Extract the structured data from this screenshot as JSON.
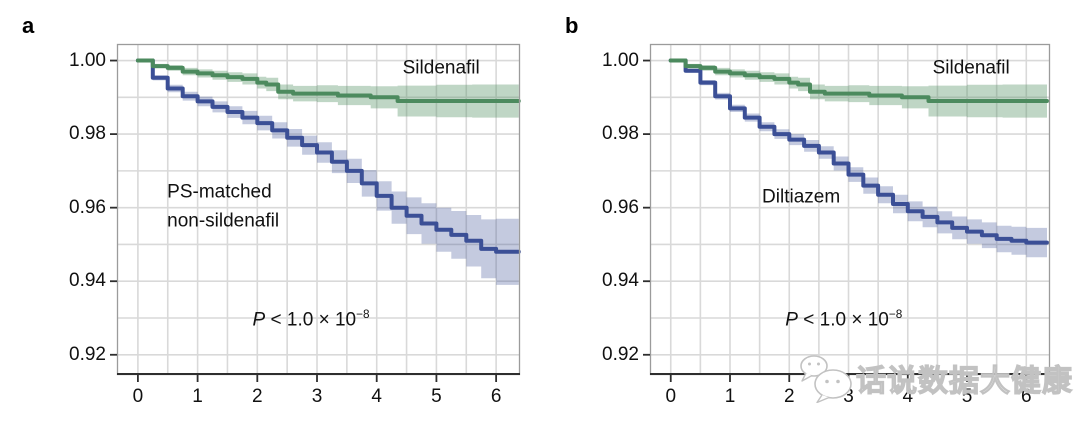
{
  "watermark": {
    "text": "话说数据大健康",
    "icon": "chat-bubbles-icon"
  },
  "colors": {
    "green_line": "#4c8a5e",
    "green_band": "rgba(78,142,94,0.36)",
    "blue_line": "#3b4f96",
    "blue_band": "rgba(59,79,150,0.30)",
    "grid": "#d9d9d9",
    "border": "#9b9b9b",
    "axis": "#2e2e2e",
    "text": "#111111"
  },
  "chart_data": [
    {
      "panel_label": "a",
      "type": "line",
      "subtype": "kaplan-meier-step",
      "title": "",
      "xlabel": "",
      "ylabel": "",
      "xlim": [
        -0.35,
        6.4
      ],
      "ylim": [
        0.9145,
        1.0045
      ],
      "xticks": [
        0,
        1,
        2,
        3,
        4,
        5,
        6
      ],
      "xtick_labels": [
        "0",
        "1",
        "2",
        "3",
        "4",
        "5",
        "6"
      ],
      "yticks": [
        1.0,
        0.98,
        0.96,
        0.94,
        0.92
      ],
      "ytick_labels": [
        "1.00",
        "0.98",
        "0.96",
        "0.94",
        "0.92"
      ],
      "grid": {
        "on": true,
        "x_step": 0.5,
        "x_range": [
          0,
          6
        ],
        "y_step": 0.01,
        "y_range": [
          0.92,
          1.0
        ]
      },
      "legend_position": "none",
      "series": [
        {
          "name": "Sildenafil",
          "color": "#4c8a5e",
          "band_color": "rgba(78,142,94,0.36)",
          "t": [
            0,
            0.25,
            0.5,
            0.75,
            1.0,
            1.25,
            1.5,
            1.75,
            2.0,
            2.15,
            2.35,
            2.6,
            3.0,
            3.35,
            3.9,
            4.35,
            5.0,
            5.6,
            6.0,
            6.38
          ],
          "v": [
            1.0,
            0.9985,
            0.998,
            0.997,
            0.9965,
            0.996,
            0.9955,
            0.995,
            0.994,
            0.9935,
            0.9915,
            0.991,
            0.991,
            0.9905,
            0.99,
            0.989,
            0.989,
            0.989,
            0.989,
            0.989
          ],
          "half": [
            0.0004,
            0.0006,
            0.0008,
            0.001,
            0.0011,
            0.0012,
            0.0013,
            0.0015,
            0.0016,
            0.0018,
            0.002,
            0.0021,
            0.0023,
            0.0026,
            0.003,
            0.0042,
            0.0044,
            0.0045,
            0.0045,
            0.0045
          ]
        },
        {
          "name": "PS-matched non-sildenafil",
          "color": "#3b4f96",
          "band_color": "rgba(59,79,150,0.30)",
          "t": [
            0,
            0.25,
            0.5,
            0.75,
            1.0,
            1.25,
            1.5,
            1.75,
            2.0,
            2.25,
            2.5,
            2.75,
            3.0,
            3.25,
            3.5,
            3.75,
            4.0,
            4.25,
            4.5,
            4.75,
            5.0,
            5.25,
            5.5,
            5.75,
            6.0,
            6.38
          ],
          "v": [
            1.0,
            0.9953,
            0.9924,
            0.9903,
            0.9889,
            0.9874,
            0.986,
            0.9845,
            0.983,
            0.981,
            0.979,
            0.977,
            0.975,
            0.9725,
            0.97,
            0.9666,
            0.9632,
            0.96,
            0.9578,
            0.9557,
            0.954,
            0.9526,
            0.951,
            0.9488,
            0.948,
            0.948
          ],
          "half": [
            0.0003,
            0.0007,
            0.001,
            0.0012,
            0.0013,
            0.0015,
            0.0016,
            0.0018,
            0.002,
            0.0022,
            0.0024,
            0.0026,
            0.0028,
            0.0031,
            0.0033,
            0.0036,
            0.004,
            0.0044,
            0.005,
            0.0055,
            0.006,
            0.0065,
            0.007,
            0.008,
            0.009,
            0.0095
          ]
        }
      ],
      "annotations": [
        {
          "name": "sildenafil-label",
          "text": "Sildenafil",
          "t": 5.08,
          "v": 0.998,
          "align": "center"
        },
        {
          "name": "ps-matched-label",
          "text": "PS-matched\nnon-sildenafil",
          "t": 0.49,
          "v": 0.9602,
          "align": "left"
        },
        {
          "name": "p-value",
          "prefix": "P",
          "text": " < 1.0 × 10",
          "sup": "−8",
          "t": 2.9,
          "v": 0.9295,
          "align": "center"
        }
      ]
    },
    {
      "panel_label": "b",
      "type": "line",
      "subtype": "kaplan-meier-step",
      "title": "",
      "xlabel": "",
      "ylabel": "",
      "xlim": [
        -0.35,
        6.4
      ],
      "ylim": [
        0.9145,
        1.0045
      ],
      "xticks": [
        0,
        1,
        2,
        3,
        4,
        5,
        6
      ],
      "xtick_labels": [
        "0",
        "1",
        "2",
        "3",
        "4",
        "5",
        "6"
      ],
      "yticks": [
        1.0,
        0.98,
        0.96,
        0.94,
        0.92
      ],
      "ytick_labels": [
        "1.00",
        "0.98",
        "0.96",
        "0.94",
        "0.92"
      ],
      "grid": {
        "on": true,
        "x_step": 0.5,
        "x_range": [
          0,
          6
        ],
        "y_step": 0.01,
        "y_range": [
          0.92,
          1.0
        ]
      },
      "legend_position": "none",
      "series": [
        {
          "name": "Sildenafil",
          "color": "#4c8a5e",
          "band_color": "rgba(78,142,94,0.36)",
          "t": [
            0,
            0.25,
            0.5,
            0.75,
            1.0,
            1.25,
            1.5,
            1.75,
            2.0,
            2.15,
            2.35,
            2.6,
            3.0,
            3.35,
            3.9,
            4.35,
            5.0,
            5.6,
            6.0,
            6.35
          ],
          "v": [
            1.0,
            0.9985,
            0.998,
            0.997,
            0.9965,
            0.996,
            0.9955,
            0.995,
            0.994,
            0.9935,
            0.9915,
            0.991,
            0.991,
            0.9905,
            0.99,
            0.989,
            0.989,
            0.989,
            0.989,
            0.989
          ],
          "half": [
            0.0004,
            0.0006,
            0.0008,
            0.001,
            0.0011,
            0.0012,
            0.0013,
            0.0015,
            0.0016,
            0.0018,
            0.002,
            0.0021,
            0.0023,
            0.0026,
            0.003,
            0.0042,
            0.0044,
            0.0045,
            0.0045,
            0.0045
          ]
        },
        {
          "name": "Diltiazem",
          "color": "#3b4f96",
          "band_color": "rgba(59,79,150,0.30)",
          "t": [
            0,
            0.25,
            0.5,
            0.75,
            1.0,
            1.25,
            1.5,
            1.75,
            2.0,
            2.25,
            2.5,
            2.75,
            3.0,
            3.25,
            3.5,
            3.75,
            4.0,
            4.25,
            4.5,
            4.75,
            5.0,
            5.25,
            5.5,
            5.75,
            6.0,
            6.35
          ],
          "v": [
            1.0,
            0.9972,
            0.994,
            0.9903,
            0.987,
            0.9845,
            0.982,
            0.98,
            0.9785,
            0.9768,
            0.975,
            0.972,
            0.969,
            0.966,
            0.9635,
            0.961,
            0.959,
            0.9575,
            0.956,
            0.9545,
            0.9535,
            0.9525,
            0.9515,
            0.951,
            0.9505,
            0.9505
          ],
          "half": [
            0.0002,
            0.0005,
            0.0007,
            0.0009,
            0.001,
            0.0011,
            0.0012,
            0.0013,
            0.0015,
            0.0016,
            0.0017,
            0.0019,
            0.002,
            0.0022,
            0.0023,
            0.0025,
            0.0027,
            0.0028,
            0.003,
            0.0031,
            0.0033,
            0.0035,
            0.0036,
            0.0038,
            0.004,
            0.0042
          ]
        }
      ],
      "annotations": [
        {
          "name": "sildenafil-label",
          "text": "Sildenafil",
          "t": 5.07,
          "v": 0.998,
          "align": "center"
        },
        {
          "name": "diltiazem-label",
          "text": "Diltiazem",
          "t": 2.2,
          "v": 0.963,
          "align": "center"
        },
        {
          "name": "p-value",
          "prefix": "P",
          "text": " < 1.0 × 10",
          "sup": "−8",
          "t": 2.92,
          "v": 0.9295,
          "align": "center"
        }
      ]
    }
  ]
}
